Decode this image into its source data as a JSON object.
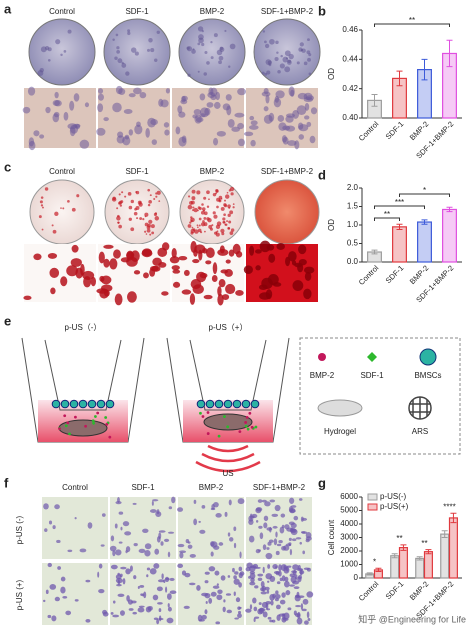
{
  "panel_labels": [
    "a",
    "b",
    "c",
    "d",
    "e",
    "f",
    "g"
  ],
  "groups": [
    "Control",
    "SDF-1",
    "BMP-2",
    "SDF-1+BMP-2"
  ],
  "panel_e": {
    "conditions": [
      "p-US（-）",
      "p-US（+）"
    ],
    "wave": "US",
    "legend": [
      "BMP-2",
      "SDF-1",
      "BMSCs",
      "Hydrogel",
      "ARS"
    ]
  },
  "panel_f_rows": [
    "p-US (-)",
    "p-US (+)"
  ],
  "watermark": "知乎 @Engineering for Life",
  "chart_data": [
    {
      "type": "bar",
      "ylabel": "OD",
      "categories": [
        "Control",
        "SDF-1",
        "BMP-2",
        "SDF-1+BMP-2"
      ],
      "values": [
        0.412,
        0.427,
        0.433,
        0.444
      ],
      "errors": [
        0.004,
        0.005,
        0.007,
        0.009
      ],
      "colors": [
        "#9e9e9e",
        "#e0393e",
        "#3d5bd9",
        "#e04fe0"
      ],
      "ylim": [
        0.4,
        0.46
      ],
      "yticks": [
        {
          "value": 0.4,
          "label": "0.40"
        },
        {
          "value": 0.42,
          "label": "0.42"
        },
        {
          "value": 0.44,
          "label": "0.44"
        },
        {
          "value": 0.46,
          "label": "0.46"
        }
      ],
      "annotations": [
        "**"
      ]
    },
    {
      "type": "bar",
      "ylabel": "OD",
      "categories": [
        "Control",
        "SDF-1",
        "BMP-2",
        "SDF-1+BMP-2"
      ],
      "values": [
        0.27,
        0.95,
        1.08,
        1.42
      ],
      "errors": [
        0.05,
        0.07,
        0.06,
        0.06
      ],
      "colors": [
        "#9e9e9e",
        "#e0393e",
        "#3d5bd9",
        "#e04fe0"
      ],
      "ylim": [
        0,
        2.0
      ],
      "yticks": [
        {
          "value": 0,
          "label": "0.0"
        },
        {
          "value": 0.5,
          "label": "0.5"
        },
        {
          "value": 1,
          "label": "1.0"
        },
        {
          "value": 1.5,
          "label": "1.5"
        },
        {
          "value": 2,
          "label": "2.0"
        }
      ],
      "annotations": [
        "**",
        "***",
        "*"
      ]
    },
    {
      "type": "grouped-bar",
      "ylabel": "Cell count",
      "categories": [
        "Control",
        "SDF-1",
        "BMP-2",
        "SDF-1+BMP-2"
      ],
      "series": [
        {
          "name": "p-US(-)",
          "color": "#9e9e9e",
          "values": [
            300,
            1650,
            1450,
            3250
          ],
          "errors": [
            80,
            150,
            120,
            250
          ]
        },
        {
          "name": "p-US(+)",
          "color": "#e0393e",
          "values": [
            600,
            2250,
            1950,
            4450
          ],
          "errors": [
            120,
            200,
            150,
            350
          ]
        }
      ],
      "ylim": [
        0,
        6000
      ],
      "yticks": [
        0,
        1000,
        2000,
        3000,
        4000,
        5000,
        6000
      ],
      "annotations": [
        "*",
        "**",
        "**",
        "****"
      ]
    }
  ]
}
